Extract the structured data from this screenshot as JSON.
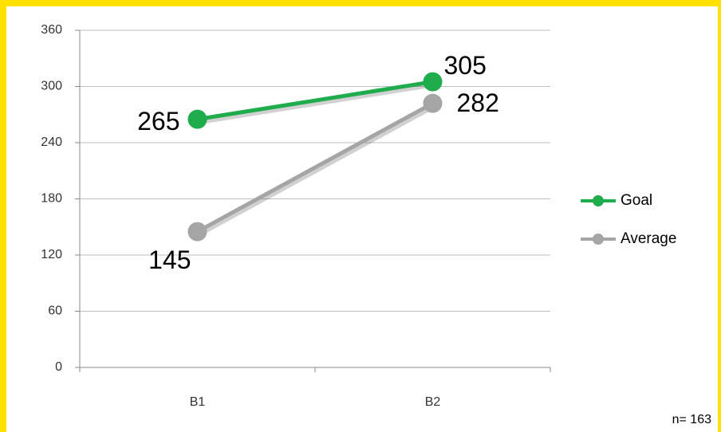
{
  "chart_data": {
    "type": "line",
    "categories": [
      "B1",
      "B2"
    ],
    "series": [
      {
        "name": "Goal",
        "color": "#1fac4c",
        "values": [
          265,
          305
        ]
      },
      {
        "name": "Average",
        "color": "#a5a5a5",
        "values": [
          145,
          282
        ]
      }
    ],
    "ylim": [
      0,
      360
    ],
    "yticks": [
      0,
      60,
      120,
      180,
      240,
      300,
      360
    ],
    "grid": true,
    "legend": "right",
    "data_labels": true,
    "annotation": "n= 163"
  }
}
